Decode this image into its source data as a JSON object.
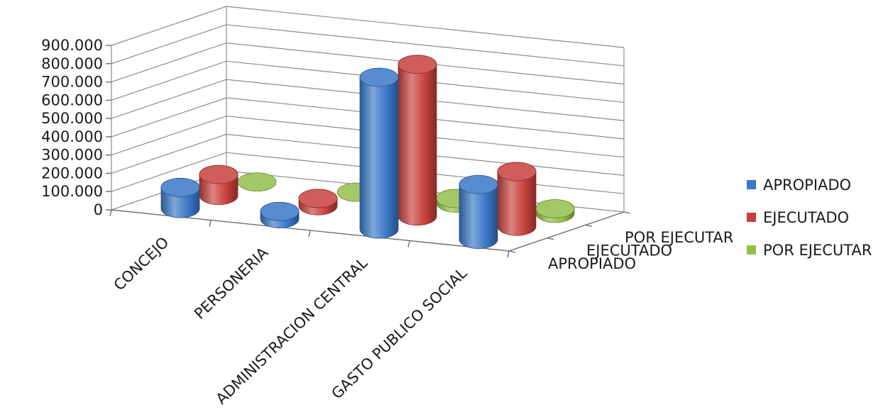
{
  "chart_data": {
    "type": "bar",
    "style": "3d-cylinder",
    "categories": [
      "CONCEJO",
      "PERSONERIA",
      "ADMINISTRACION CENTRAL",
      "GASTO PUBLICO SOCIAL"
    ],
    "series": [
      {
        "name": "APROPIADO",
        "color": "#3a78c8",
        "values": [
          115000,
          40000,
          830000,
          300000
        ]
      },
      {
        "name": "EJECUTADO",
        "color": "#c8403c",
        "values": [
          115000,
          40000,
          830000,
          300000
        ]
      },
      {
        "name": "POR EJECUTAR",
        "color": "#92c04a",
        "values": [
          3000,
          3000,
          25000,
          25000
        ]
      }
    ],
    "ylim": [
      0,
      900000
    ],
    "yticks": [
      "0",
      "100.000",
      "200.000",
      "300.000",
      "400.000",
      "500.000",
      "600.000",
      "700.000",
      "800.000",
      "900.000"
    ],
    "depth_labels": [
      "APROPIADO",
      "EJECUTADO",
      "POR EJECUTAR"
    ],
    "grid": true,
    "legend": "right"
  }
}
